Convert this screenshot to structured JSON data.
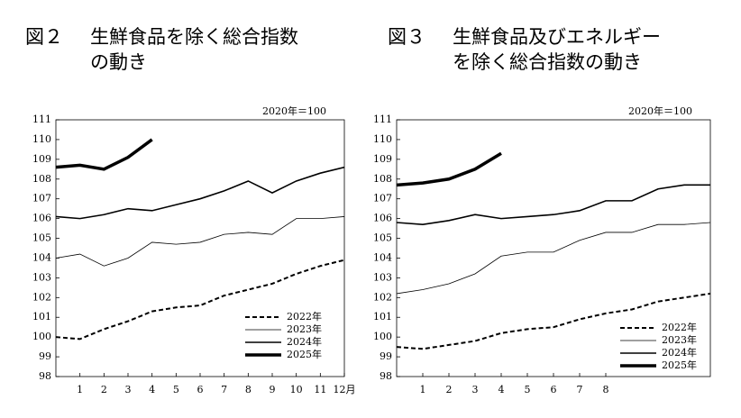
{
  "chart_data": [
    {
      "type": "line",
      "figure_label": "図２",
      "title_lines": [
        "生鮮食品を除く総合指数",
        "の動き"
      ],
      "note": "2020年＝100",
      "x": [
        0,
        1,
        2,
        3,
        4,
        5,
        6,
        7,
        8,
        9,
        10,
        11,
        12
      ],
      "xticks": [
        {
          "value": 1,
          "label": "1"
        },
        {
          "value": 2,
          "label": "2"
        },
        {
          "value": 3,
          "label": "3"
        },
        {
          "value": 4,
          "label": "4"
        },
        {
          "value": 5,
          "label": "5"
        },
        {
          "value": 6,
          "label": "6"
        },
        {
          "value": 7,
          "label": "7"
        },
        {
          "value": 8,
          "label": "8"
        },
        {
          "value": 9,
          "label": "9"
        },
        {
          "value": 10,
          "label": "10"
        },
        {
          "value": 11,
          "label": "11"
        },
        {
          "value": 12,
          "label": "12月"
        }
      ],
      "xlim": [
        0,
        12
      ],
      "ylim": [
        98,
        111
      ],
      "yticks": [
        98,
        99,
        100,
        101,
        102,
        103,
        104,
        105,
        106,
        107,
        108,
        109,
        110,
        111
      ],
      "legend": "lower right",
      "series": [
        {
          "name": "2022年",
          "color": "#000000",
          "width": 2,
          "dashed": true,
          "values": [
            100.0,
            99.9,
            100.4,
            100.8,
            101.3,
            101.5,
            101.6,
            102.1,
            102.4,
            102.7,
            103.2,
            103.6,
            103.9
          ]
        },
        {
          "name": "2023年",
          "color": "#000000",
          "width": 0.8,
          "dashed": false,
          "values": [
            104.0,
            104.2,
            103.6,
            104.0,
            104.8,
            104.7,
            104.8,
            105.2,
            105.3,
            105.2,
            106.0,
            106.0,
            106.1
          ]
        },
        {
          "name": "2024年",
          "color": "#000000",
          "width": 1.6,
          "dashed": false,
          "values": [
            106.1,
            106.0,
            106.2,
            106.5,
            106.4,
            106.7,
            107.0,
            107.4,
            107.9,
            107.3,
            107.9,
            108.3,
            108.6
          ]
        },
        {
          "name": "2025年",
          "color": "#000000",
          "width": 3.5,
          "dashed": false,
          "values": [
            108.6,
            108.7,
            108.5,
            109.1,
            110.0,
            null,
            null,
            null,
            null,
            null,
            null,
            null,
            null
          ]
        }
      ]
    },
    {
      "type": "line",
      "figure_label": "図３",
      "title_lines": [
        "生鮮食品及びエネルギー",
        "を除く総合指数の動き"
      ],
      "note": "2020年＝100",
      "x": [
        0,
        1,
        2,
        3,
        4,
        5,
        6,
        7,
        8,
        9,
        10,
        11,
        12
      ],
      "xticks": [
        {
          "value": 1,
          "label": "1"
        },
        {
          "value": 2,
          "label": "2"
        },
        {
          "value": 3,
          "label": "3"
        },
        {
          "value": 4,
          "label": "4"
        },
        {
          "value": 5,
          "label": "5"
        },
        {
          "value": 6,
          "label": "6"
        },
        {
          "value": 7,
          "label": "7"
        },
        {
          "value": 8,
          "label": "8"
        }
      ],
      "xlim": [
        0,
        12
      ],
      "ylim": [
        98,
        111
      ],
      "yticks": [
        98,
        99,
        100,
        101,
        102,
        103,
        104,
        105,
        106,
        107,
        108,
        109,
        110,
        111
      ],
      "legend": "lower right",
      "series": [
        {
          "name": "2022年",
          "color": "#000000",
          "width": 2,
          "dashed": true,
          "values": [
            99.5,
            99.4,
            99.6,
            99.8,
            100.2,
            100.4,
            100.5,
            100.9,
            101.2,
            101.4,
            101.8,
            102.0,
            102.2
          ]
        },
        {
          "name": "2023年",
          "color": "#000000",
          "width": 0.8,
          "dashed": false,
          "values": [
            102.2,
            102.4,
            102.7,
            103.2,
            104.1,
            104.3,
            104.3,
            104.9,
            105.3,
            105.3,
            105.7,
            105.7,
            105.8
          ]
        },
        {
          "name": "2024年",
          "color": "#000000",
          "width": 1.6,
          "dashed": false,
          "values": [
            105.8,
            105.7,
            105.9,
            106.2,
            106.0,
            106.1,
            106.2,
            106.4,
            106.9,
            106.9,
            107.5,
            107.7,
            107.7
          ]
        },
        {
          "name": "2025年",
          "color": "#000000",
          "width": 3.5,
          "dashed": false,
          "values": [
            107.7,
            107.8,
            108.0,
            108.5,
            109.3,
            null,
            null,
            null,
            null,
            null,
            null,
            null,
            null
          ]
        }
      ]
    }
  ]
}
